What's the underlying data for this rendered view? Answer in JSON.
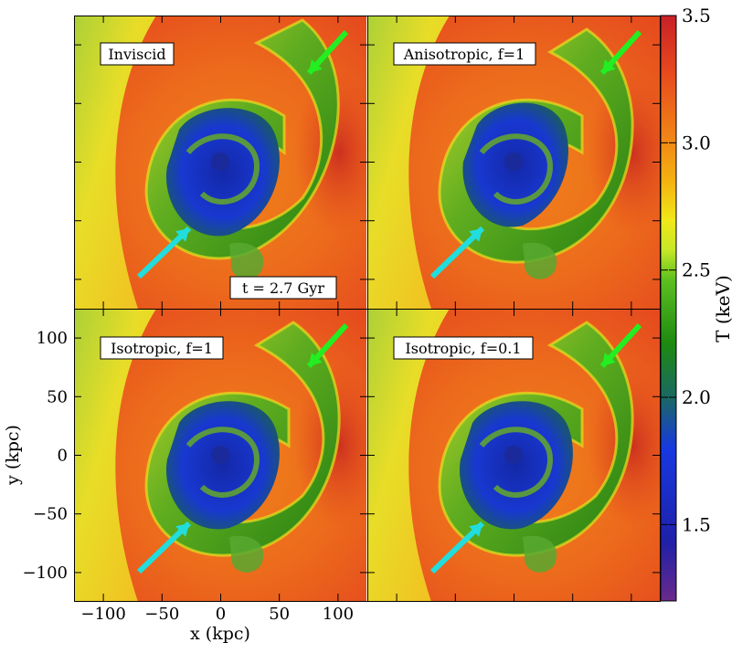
{
  "figure": {
    "time_label": "t = 2.7 Gyr",
    "xlabel": "x (kpc)",
    "ylabel": "y (kpc)",
    "colorbar_label": "T (keV)"
  },
  "panels": [
    {
      "label": "Inviscid"
    },
    {
      "label": "Anisotropic, f=1"
    },
    {
      "label": "Isotropic, f=1"
    },
    {
      "label": "Isotropic, f=0.1"
    }
  ],
  "chart_data": {
    "type": "heatmap",
    "panel_titles": [
      "Inviscid",
      "Anisotropic, f=1",
      "Isotropic, f=1",
      "Isotropic, f=0.1"
    ],
    "xlabel": "x (kpc)",
    "ylabel": "y (kpc)",
    "x_ticks": [
      -100,
      -50,
      0,
      50,
      100
    ],
    "y_ticks": [
      -100,
      -50,
      0,
      50,
      100
    ],
    "xlim": [
      -125,
      125
    ],
    "ylim": [
      -125,
      125
    ],
    "colorbar": {
      "label": "T (keV)",
      "ticks": [
        1.5,
        2.0,
        2.5,
        3.0,
        3.5
      ],
      "range": [
        1.2,
        3.5
      ]
    },
    "annotation": "t = 2.7 Gyr",
    "arrows": {
      "green": {
        "color": "#22ee22"
      },
      "cyan": {
        "color": "#22dddd"
      }
    }
  },
  "colors": {
    "hot": "#e8401c",
    "warm": "#f07a18",
    "yellow": "#e8e820",
    "yellowgreen": "#b8e030",
    "green": "#2a9a10",
    "blue": "#1830c8"
  }
}
